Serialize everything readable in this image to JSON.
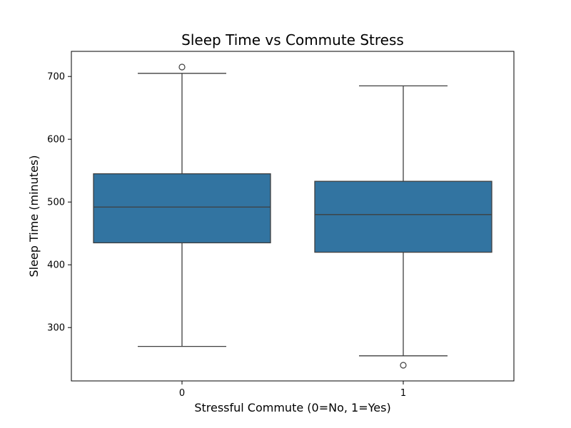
{
  "chart_data": {
    "type": "box",
    "title": "Sleep Time vs Commute Stress",
    "xlabel": "Stressful Commute (0=No, 1=Yes)",
    "ylabel": "Sleep Time (minutes)",
    "categories": [
      "0",
      "1"
    ],
    "ylim": [
      215,
      740
    ],
    "yticks": [
      300,
      400,
      500,
      600,
      700
    ],
    "box_color": "#3274a1",
    "line_color": "#3f3f3f",
    "boxes": [
      {
        "category": "0",
        "whisker_low": 270,
        "q1": 435,
        "median": 492,
        "q3": 545,
        "whisker_high": 705,
        "outliers": [
          715
        ]
      },
      {
        "category": "1",
        "whisker_low": 255,
        "q1": 420,
        "median": 480,
        "q3": 533,
        "whisker_high": 685,
        "outliers": [
          240
        ]
      }
    ],
    "grid": false,
    "legend": "none"
  }
}
